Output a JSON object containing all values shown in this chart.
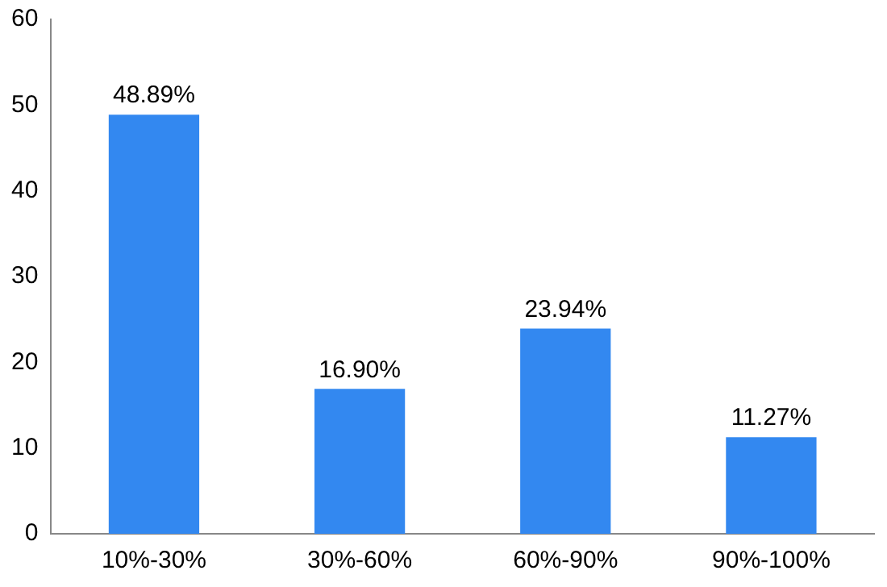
{
  "chart_data": {
    "type": "bar",
    "categories": [
      "10%-30%",
      "30%-60%",
      "60%-90%",
      "90%-100%"
    ],
    "values": [
      48.89,
      16.9,
      23.94,
      11.27
    ],
    "value_labels": [
      "48.89%",
      "16.90%",
      "23.94%",
      "11.27%"
    ],
    "color": "#3388f0",
    "ylim": [
      0,
      60
    ],
    "yticks": [
      0,
      10,
      20,
      30,
      40,
      50,
      60
    ],
    "grid": false,
    "legend": false
  }
}
